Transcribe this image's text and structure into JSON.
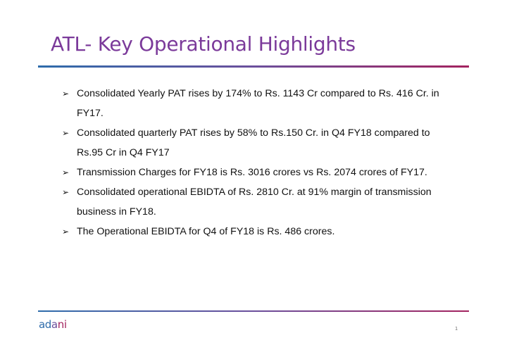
{
  "slide": {
    "title": "ATL- Key Operational Highlights",
    "bullets": [
      "Consolidated Yearly PAT rises by 174% to Rs. 1143 Cr compared to Rs. 416 Cr. in FY17.",
      "Consolidated quarterly PAT rises by 58% to Rs.150 Cr. in Q4 FY18 compared to Rs.95 Cr in Q4 FY17",
      "Transmission Charges for FY18 is Rs. 3016 crores vs Rs. 2074 crores of FY17.",
      "Consolidated operational EBIDTA of Rs. 2810 Cr. at 91% margin of transmission business in FY18.",
      "The Operational EBIDTA for Q4 of FY18 is Rs. 486 crores."
    ],
    "bullet_marker": "➢",
    "page_number": "1"
  },
  "footer": {
    "logo": {
      "text_part1": "ad",
      "text_part2": "a",
      "text_part3": "ni"
    }
  },
  "colors": {
    "title": "#7b3a9a",
    "rule_start": "#2e6cab",
    "rule_mid": "#6b4f9c",
    "rule_end": "#a3235f"
  }
}
